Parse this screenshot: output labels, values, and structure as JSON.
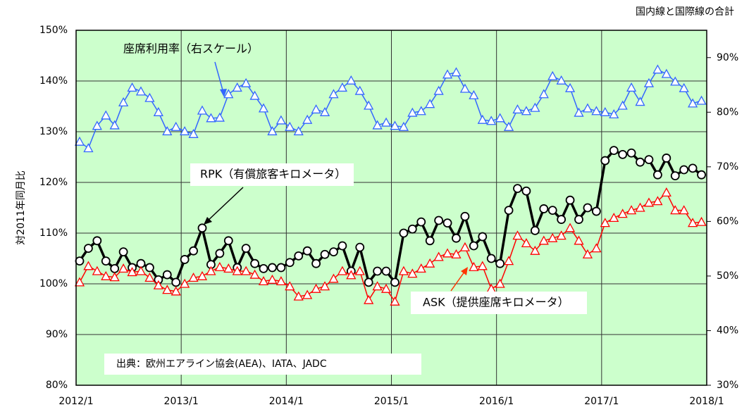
{
  "chart_data": {
    "type": "line",
    "title": "国内線と国際線の合計",
    "y_label": "対2011年同月比",
    "annotations": [
      "座席利用率（右スケール）",
      "RPK（有償旅客キロメータ）",
      "ASK（提供座席キロメータ）",
      "出典：欧州エアライン協会(AEA)、IATA、JADC"
    ],
    "x": [
      "2012/1",
      "2012/2",
      "2012/3",
      "2012/4",
      "2012/5",
      "2012/6",
      "2012/7",
      "2012/8",
      "2012/9",
      "2012/10",
      "2012/11",
      "2012/12",
      "2013/1",
      "2013/2",
      "2013/3",
      "2013/4",
      "2013/5",
      "2013/6",
      "2013/7",
      "2013/8",
      "2013/9",
      "2013/10",
      "2013/11",
      "2013/12",
      "2014/1",
      "2014/2",
      "2014/3",
      "2014/4",
      "2014/5",
      "2014/6",
      "2014/7",
      "2014/8",
      "2014/9",
      "2014/10",
      "2014/11",
      "2014/12",
      "2015/1",
      "2015/2",
      "2015/3",
      "2015/4",
      "2015/5",
      "2015/6",
      "2015/7",
      "2015/8",
      "2015/9",
      "2015/10",
      "2015/11",
      "2015/12",
      "2016/1",
      "2016/2",
      "2016/3",
      "2016/4",
      "2016/5",
      "2016/6",
      "2016/7",
      "2016/8",
      "2016/9",
      "2016/10",
      "2016/11",
      "2016/12",
      "2017/1",
      "2017/2",
      "2017/3",
      "2017/4",
      "2017/5",
      "2017/6",
      "2017/7",
      "2017/8",
      "2017/9",
      "2017/10",
      "2017/11",
      "2017/12"
    ],
    "xlim": [
      "2012/1",
      "2018/1"
    ],
    "xticks": [
      "2012/1",
      "2013/1",
      "2014/1",
      "2015/1",
      "2016/1",
      "2017/1",
      "2018/1"
    ],
    "ylim": [
      80,
      150
    ],
    "yticks": [
      {
        "value": 80,
        "label": "80%"
      },
      {
        "value": 90,
        "label": "90%"
      },
      {
        "value": 100,
        "label": "100%"
      },
      {
        "value": 110,
        "label": "110%"
      },
      {
        "value": 120,
        "label": "120%"
      },
      {
        "value": 130,
        "label": "130%"
      },
      {
        "value": 140,
        "label": "140%"
      },
      {
        "value": 150,
        "label": "150%"
      }
    ],
    "y2lim": [
      30,
      95
    ],
    "y2ticks": [
      {
        "value": 30,
        "label": "30%"
      },
      {
        "value": 40,
        "label": "40%"
      },
      {
        "value": 50,
        "label": "50%"
      },
      {
        "value": 60,
        "label": "60%"
      },
      {
        "value": 70,
        "label": "70%"
      },
      {
        "value": 80,
        "label": "80%"
      },
      {
        "value": 90,
        "label": "90%"
      }
    ],
    "grid": true,
    "series": [
      {
        "name": "座席利用率",
        "color": "#3366ff",
        "marker": "triangle",
        "axis": "y2",
        "values": [
          74.6,
          73.4,
          77.5,
          79.4,
          77.6,
          81.8,
          84.5,
          83.8,
          82.6,
          80,
          76.5,
          77.3,
          76.5,
          76,
          80.3,
          78.9,
          79,
          83.3,
          84.5,
          85.3,
          83,
          80.7,
          76.5,
          78.5,
          77.3,
          76.5,
          78.6,
          80.5,
          80,
          83.3,
          84.5,
          85.8,
          83.9,
          81.2,
          77.6,
          78.1,
          77.5,
          77.3,
          79.9,
          80.2,
          81.5,
          83.9,
          86.9,
          87.3,
          84.3,
          83.1,
          78.6,
          78.4,
          78.9,
          77.3,
          80.5,
          80.2,
          80.8,
          83.3,
          86.6,
          85.8,
          84.4,
          79.9,
          80.7,
          80.2,
          80,
          79.6,
          81.2,
          84.5,
          81.9,
          85.3,
          87.8,
          87,
          85.6,
          84.4,
          81.6,
          82.1
        ]
      },
      {
        "name": "RPK",
        "color": "#000000",
        "marker": "circle",
        "values": [
          104.5,
          107,
          108.5,
          104.5,
          103,
          106.3,
          103.2,
          104,
          103.2,
          100.8,
          101.8,
          100.3,
          104.8,
          106.5,
          111,
          103.8,
          106,
          108.5,
          103.2,
          107,
          104,
          103,
          103.2,
          103.2,
          104.2,
          105.5,
          106.5,
          104,
          105.8,
          106.3,
          107.5,
          102.5,
          107.2,
          100.3,
          102.5,
          102.5,
          100.3,
          110,
          110.8,
          112.2,
          108.5,
          112.5,
          112,
          109,
          113.3,
          107.5,
          109.3,
          105,
          104,
          114.5,
          118.8,
          118.3,
          110.5,
          114.8,
          114.5,
          112.7,
          116.5,
          112.7,
          115,
          114.3,
          124.3,
          126.3,
          125.5,
          125.8,
          124,
          124.5,
          121.5,
          124.8,
          121.3,
          122.5,
          122.8,
          121.5
        ]
      },
      {
        "name": "ASK",
        "color": "#ff0000",
        "marker": "triangle",
        "values": [
          100.3,
          103.5,
          102.5,
          101.5,
          101.3,
          103,
          102.3,
          102.5,
          101.2,
          99.7,
          98.8,
          98.5,
          100,
          101.2,
          101.5,
          102.5,
          103.3,
          103,
          102.5,
          102.5,
          101.8,
          100.5,
          100.8,
          100.5,
          99.5,
          97.5,
          97.8,
          99,
          99.5,
          101,
          102.5,
          101.7,
          102.5,
          96.8,
          99.5,
          99,
          96.5,
          102.5,
          102,
          103,
          104,
          105.3,
          106,
          105.8,
          107.2,
          103.3,
          103.5,
          99,
          100,
          104.5,
          109.5,
          108,
          106.5,
          108.5,
          109,
          109.5,
          111,
          108.5,
          105.8,
          107,
          112,
          113,
          113.8,
          114.5,
          115,
          116,
          116.3,
          118,
          114.5,
          114.5,
          112,
          112.2
        ]
      }
    ]
  }
}
